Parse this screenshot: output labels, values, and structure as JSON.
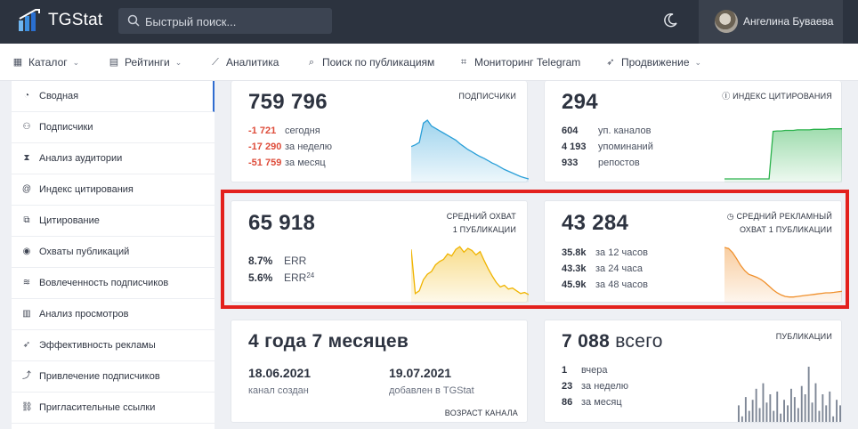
{
  "header": {
    "logo_text": "TGStat",
    "search_placeholder": "Быстрый поиск...",
    "user_name": "Ангелина Буваева"
  },
  "nav": [
    {
      "icon": "grid-icon",
      "label": "Каталог",
      "has_dropdown": true
    },
    {
      "icon": "calendar-icon",
      "label": "Рейтинги",
      "has_dropdown": true
    },
    {
      "icon": "chart-line-icon",
      "label": "Аналитика",
      "has_dropdown": false
    },
    {
      "icon": "search-icon",
      "label": "Поиск по публикациям",
      "has_dropdown": false
    },
    {
      "icon": "monitor-icon",
      "label": "Мониторинг Telegram",
      "has_dropdown": false
    },
    {
      "icon": "rocket-icon",
      "label": "Продвижение",
      "has_dropdown": true
    }
  ],
  "sidebar": [
    {
      "icon": "dashboard-icon",
      "label": "Сводная",
      "active": true
    },
    {
      "icon": "users-icon",
      "label": "Подписчики"
    },
    {
      "icon": "hourglass-icon",
      "label": "Анализ аудитории"
    },
    {
      "icon": "at-icon",
      "label": "Индекс цитирования"
    },
    {
      "icon": "copy-icon",
      "label": "Цитирование"
    },
    {
      "icon": "eye-icon",
      "label": "Охваты публикаций"
    },
    {
      "icon": "wifi-icon",
      "label": "Вовлеченность подписчиков"
    },
    {
      "icon": "bar-chart-icon",
      "label": "Анализ просмотров"
    },
    {
      "icon": "rocket-icon",
      "label": "Эффективность рекламы"
    },
    {
      "icon": "trend-icon",
      "label": "Привлечение подписчиков"
    },
    {
      "icon": "link-icon",
      "label": "Пригласительные ссылки"
    }
  ],
  "cards": {
    "subscribers": {
      "value": "759 796",
      "label": "ПОДПИСЧИКИ",
      "stats": [
        {
          "n": "-1 721",
          "t": "сегодня"
        },
        {
          "n": "-17 290",
          "t": "за неделю"
        },
        {
          "n": "-51 759",
          "t": "за месяц"
        }
      ],
      "color": "#2a9fd8"
    },
    "citation": {
      "value": "294",
      "label": "ИНДЕКС ЦИТИРОВАНИЯ",
      "stats": [
        {
          "n": "604",
          "t": "уп. каналов"
        },
        {
          "n": "4 193",
          "t": "упоминаний"
        },
        {
          "n": "933",
          "t": "репостов"
        }
      ],
      "color": "#2bb24c"
    },
    "avg_reach": {
      "value": "65 918",
      "label_line1": "СРЕДНИЙ ОХВАТ",
      "label_line2": "1 ПУБЛИКАЦИИ",
      "err": {
        "n": "8.7%",
        "t": "ERR"
      },
      "err24": {
        "n": "5.6%",
        "t": "ERR",
        "sub": "24"
      },
      "color": "#f0b400"
    },
    "ad_reach": {
      "value": "43 284",
      "label_line1": "СРЕДНИЙ РЕКЛАМНЫЙ",
      "label_line2": "ОХВАТ 1 ПУБЛИКАЦИИ",
      "stats": [
        {
          "n": "35.8k",
          "t": "за 12 часов"
        },
        {
          "n": "43.3k",
          "t": "за 24 часа"
        },
        {
          "n": "45.9k",
          "t": "за 48 часов"
        }
      ],
      "color": "#f0902c"
    },
    "age": {
      "value": "4 года 7 месяцев",
      "created_date": "18.06.2021",
      "created_label": "канал создан",
      "added_date": "19.07.2021",
      "added_label": "добавлен в TGStat",
      "footer": "ВОЗРАСТ КАНАЛА"
    },
    "posts": {
      "value_num": "7 088",
      "value_word": "всего",
      "label": "ПУБЛИКАЦИИ",
      "stats": [
        {
          "n": "1",
          "t": "вчера"
        },
        {
          "n": "23",
          "t": "за неделю"
        },
        {
          "n": "86",
          "t": "за месяц"
        }
      ],
      "color": "#7e8796"
    }
  },
  "sparklines": {
    "subscribers": [
      0.55,
      0.58,
      0.62,
      0.95,
      1.0,
      0.9,
      0.86,
      0.82,
      0.78,
      0.74,
      0.7,
      0.66,
      0.6,
      0.55,
      0.5,
      0.46,
      0.42,
      0.38,
      0.35,
      0.31,
      0.27,
      0.24,
      0.2,
      0.16,
      0.13,
      0.1,
      0.07,
      0.04,
      0.02,
      0.0
    ],
    "citation": [
      0.0,
      0.0,
      0.0,
      0.0,
      0.0,
      0.0,
      0.0,
      0.0,
      0.0,
      0.0,
      0.0,
      0.0,
      0.92,
      0.93,
      0.93,
      0.94,
      0.94,
      0.94,
      0.95,
      0.95,
      0.95,
      0.95,
      0.96,
      0.96,
      0.96,
      0.96,
      0.97,
      0.97,
      0.97,
      0.97
    ],
    "avg_reach": [
      0.9,
      0.1,
      0.15,
      0.35,
      0.45,
      0.5,
      0.62,
      0.68,
      0.72,
      0.82,
      0.78,
      0.9,
      0.95,
      0.85,
      0.92,
      0.88,
      0.8,
      0.86,
      0.7,
      0.55,
      0.42,
      0.3,
      0.22,
      0.25,
      0.18,
      0.2,
      0.15,
      0.1,
      0.12,
      0.08
    ],
    "ad_reach": [
      1.0,
      0.98,
      0.9,
      0.78,
      0.65,
      0.55,
      0.48,
      0.45,
      0.42,
      0.38,
      0.32,
      0.25,
      0.18,
      0.12,
      0.08,
      0.05,
      0.04,
      0.04,
      0.05,
      0.06,
      0.07,
      0.08,
      0.09,
      0.1,
      0.11,
      0.12,
      0.12,
      0.13,
      0.14,
      0.15
    ],
    "posts": [
      0.3,
      0.1,
      0.45,
      0.2,
      0.4,
      0.6,
      0.25,
      0.7,
      0.35,
      0.5,
      0.2,
      0.55,
      0.15,
      0.4,
      0.3,
      0.6,
      0.45,
      0.25,
      0.65,
      0.5,
      1.0,
      0.35,
      0.7,
      0.2,
      0.5,
      0.3,
      0.55,
      0.1,
      0.4,
      0.3
    ]
  }
}
